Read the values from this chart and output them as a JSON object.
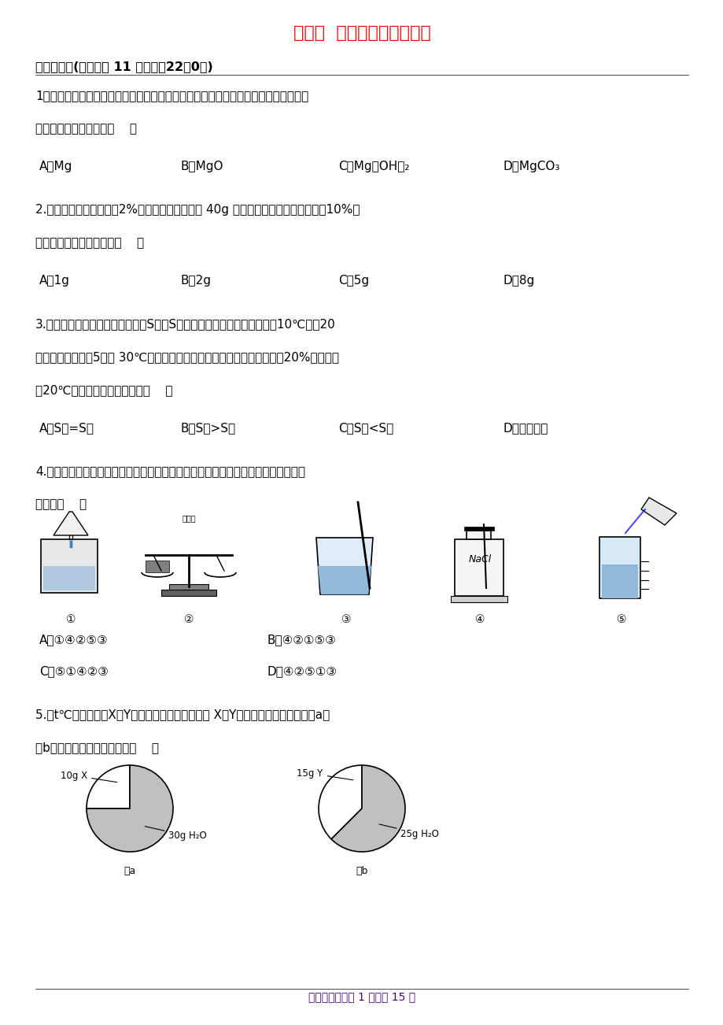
{
  "title": "第二节  溶液组成的定量表示",
  "title_color": "#FF0000",
  "title_fontsize": 16,
  "bg_color": "#FFFFFF",
  "section_header": "一、单选题(本大题共 11 小题，共22．0分)",
  "footer": "初中化学试卷第 1 页，共 15 页",
  "q4_options": [
    "A．①④②⑤③",
    "B．④②①⑤③",
    "C．⑤①④②③",
    "D．④②⑤①③"
  ]
}
